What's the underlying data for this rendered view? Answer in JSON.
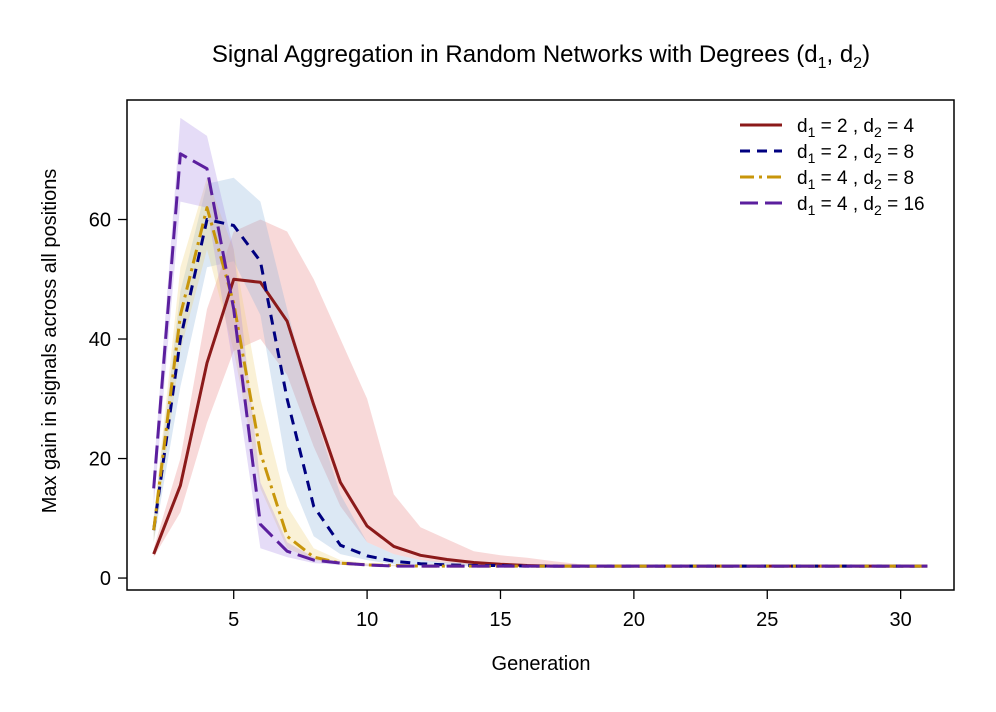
{
  "chart_data": {
    "type": "line",
    "title": "Signal Aggregation in Random Networks with Degrees (d",
    "title_sub1": "1",
    "title_mid": ", d",
    "title_sub2": "2",
    "title_end": ")",
    "xlabel": "Generation",
    "ylabel": "Max gain in signals across all positions",
    "xlim": [
      1,
      32
    ],
    "ylim": [
      -2,
      80
    ],
    "xticks": [
      5,
      10,
      15,
      20,
      25,
      30
    ],
    "yticks": [
      0,
      20,
      40,
      60
    ],
    "x": [
      2,
      3,
      4,
      5,
      6,
      7,
      8,
      9,
      10,
      11,
      12,
      13,
      14,
      15,
      16,
      17,
      18,
      19,
      20,
      21,
      22,
      23,
      24,
      25,
      26,
      27,
      28,
      29,
      30,
      31
    ],
    "legend_position": "top-right",
    "series": [
      {
        "name": "d1 = 2 , d2 = 4",
        "d1": "2",
        "d2": "4",
        "color": "#8B1A1A",
        "dash": "solid",
        "fill": "rgba(230,120,120,0.28)",
        "values": [
          4,
          15.5,
          36,
          50,
          49.5,
          43,
          29,
          16,
          8.7,
          5.3,
          3.8,
          3.1,
          2.6,
          2.3,
          2.1,
          2,
          2,
          2,
          2,
          2,
          2,
          2,
          2,
          2,
          2,
          2,
          2,
          2,
          2,
          2
        ],
        "lower": [
          3.5,
          11,
          26,
          38,
          40,
          34,
          22,
          12,
          6,
          4,
          3,
          2.5,
          2.2,
          2,
          2,
          2,
          2,
          2,
          2,
          2,
          2,
          2,
          2,
          2,
          2,
          2,
          2,
          2,
          2,
          2
        ],
        "upper": [
          5,
          20,
          45,
          58,
          60,
          58,
          50,
          40,
          30,
          14,
          8.5,
          6.5,
          4.5,
          3.8,
          3.4,
          2.8,
          2.3,
          2.1,
          2,
          2,
          2,
          2,
          2,
          2,
          2,
          2,
          2,
          2,
          2,
          2
        ]
      },
      {
        "name": "d1 = 2 , d2 = 8",
        "d1": "2",
        "d2": "8",
        "color": "#000080",
        "dash": "10,7",
        "fill": "rgba(140,180,220,0.30)",
        "values": [
          8,
          40,
          60,
          59,
          53,
          30,
          12,
          5.5,
          3.7,
          2.8,
          2.4,
          2.2,
          2.1,
          2.1,
          2,
          2,
          2,
          2,
          2,
          2,
          2,
          2,
          2,
          2,
          2,
          2,
          2,
          2,
          2,
          2
        ],
        "lower": [
          6,
          32,
          52,
          53,
          44,
          18,
          7,
          4,
          3,
          2.3,
          2,
          2,
          2,
          2,
          2,
          2,
          2,
          2,
          2,
          2,
          2,
          2,
          2,
          2,
          2,
          2,
          2,
          2,
          2,
          2
        ],
        "upper": [
          10,
          48,
          66,
          67,
          63,
          45,
          28,
          14,
          6,
          4,
          3,
          2.6,
          2.4,
          2.2,
          2.1,
          2,
          2,
          2,
          2,
          2,
          2,
          2,
          2,
          2,
          2,
          2,
          2,
          2,
          2,
          2
        ]
      },
      {
        "name": "d1 = 4 , d2 = 8",
        "d1": "4",
        "d2": "8",
        "color": "#C8960A",
        "dash": "14,5,3,5",
        "fill": "rgba(240,210,120,0.30)",
        "values": [
          8,
          44,
          62,
          46,
          21,
          7,
          3.5,
          2.5,
          2.2,
          2.1,
          2,
          2,
          2,
          2,
          2,
          2,
          2,
          2,
          2,
          2,
          2,
          2,
          2,
          2,
          2,
          2,
          2,
          2,
          2,
          2
        ],
        "lower": [
          6,
          38,
          55,
          38,
          15,
          5,
          3,
          2.2,
          2,
          2,
          2,
          2,
          2,
          2,
          2,
          2,
          2,
          2,
          2,
          2,
          2,
          2,
          2,
          2,
          2,
          2,
          2,
          2,
          2,
          2
        ],
        "upper": [
          10,
          52,
          67,
          55,
          30,
          12,
          5,
          3,
          2.5,
          2.2,
          2,
          2,
          2,
          2,
          2,
          2,
          2,
          2,
          2,
          2,
          2,
          2,
          2,
          2,
          2,
          2,
          2,
          2,
          2,
          2
        ]
      },
      {
        "name": "d1 = 4 , d2 = 16",
        "d1": "4",
        "d2": "16",
        "color": "#5B1F9E",
        "dash": "18,7",
        "fill": "rgba(170,140,230,0.30)",
        "values": [
          15,
          71,
          68.5,
          45,
          9,
          4.5,
          3,
          2.5,
          2.2,
          2,
          2,
          2,
          2,
          2,
          2,
          2,
          2,
          2,
          2,
          2,
          2,
          2,
          2,
          2,
          2,
          2,
          2,
          2,
          2,
          2
        ],
        "lower": [
          12,
          63,
          62,
          35,
          5,
          3.5,
          2.5,
          2.2,
          2,
          2,
          2,
          2,
          2,
          2,
          2,
          2,
          2,
          2,
          2,
          2,
          2,
          2,
          2,
          2,
          2,
          2,
          2,
          2,
          2,
          2
        ],
        "upper": [
          18,
          77,
          74,
          55,
          16,
          6,
          3.5,
          2.7,
          2.3,
          2.1,
          2,
          2,
          2,
          2,
          2,
          2,
          2,
          2,
          2,
          2,
          2,
          2,
          2,
          2,
          2,
          2,
          2,
          2,
          2,
          2
        ]
      }
    ]
  }
}
